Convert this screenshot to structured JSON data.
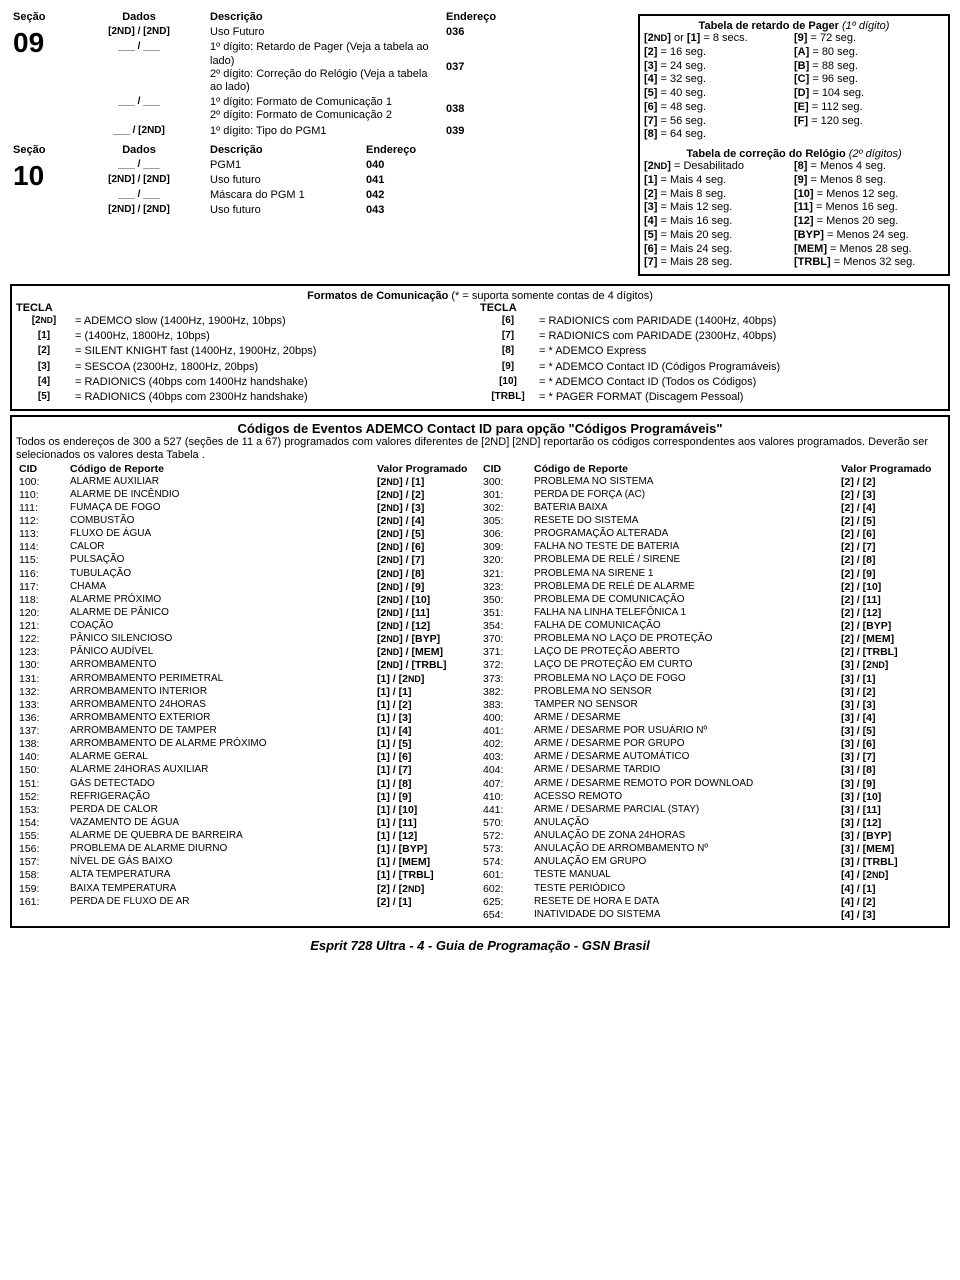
{
  "header": {
    "col1": "Seção",
    "col2": "Dados",
    "col3": "Descrição",
    "col4": "Endereço"
  },
  "s09": {
    "num": "09",
    "r1": {
      "d": "[2ND] / [2ND]",
      "desc": "Uso Futuro",
      "addr": "036"
    },
    "r2": {
      "d": "___ / ___",
      "desc": "1º dígito: Retardo de Pager (Veja a tabela ao lado)\n2º dígito: Correção do Relógio (Veja a tabela ao lado)",
      "addr": "037"
    },
    "r3": {
      "d": "___ / ___",
      "desc": "1º dígito: Formato de Comunicação 1\n2º dígito: Formato de Comunicação 2",
      "addr": "038"
    },
    "r4": {
      "d": "___ / [2ND]",
      "desc": "1º dígito: Tipo do PGM1",
      "addr": "039"
    }
  },
  "s10": {
    "num": "10",
    "hdr": {
      "c1": "Seção",
      "c2": "Dados",
      "c3": "Descrição",
      "c4": "Endereço"
    },
    "r1": {
      "d": "___ / ___",
      "desc": "PGM1",
      "addr": "040"
    },
    "r2": {
      "d": "[2ND] / [2ND]",
      "desc": "Uso futuro",
      "addr": "041"
    },
    "r3": {
      "d": "___ / ___",
      "desc": "Máscara do PGM 1",
      "addr": "042"
    },
    "r4": {
      "d": "[2ND] / [2ND]",
      "desc": "Uso futuro",
      "addr": "043"
    }
  },
  "pager": {
    "title": "Tabela de retardo de Pager",
    "sub": "(1º dígito)",
    "L": [
      "[2ND] or [1] = 8 secs.",
      "[2] = 16 seg.",
      "[3] = 24 seg.",
      "[4] = 32 seg.",
      "[5] = 40 seg.",
      "[6] = 48 seg.",
      "[7] = 56 seg.",
      "[8] = 64 seg."
    ],
    "R": [
      "[9] = 72 seg.",
      "[A] = 80 seg.",
      "[B] = 88 seg.",
      "[C] = 96 seg.",
      "[D] = 104 seg.",
      "[E] = 112  seg.",
      "[F] = 120  seg."
    ]
  },
  "clock": {
    "title": "Tabela  de correção do Relógio",
    "sub": "(2º dígitos)",
    "L": [
      "[2ND] = Desabilitado",
      "[1] = Mais 4 seg.",
      "[2] = Mais 8 seg.",
      "[3] = Mais 12 seg.",
      "[4] = Mais 16 seg.",
      "[5] = Mais 20 seg.",
      "[6] = Mais 24 seg.",
      "[7] = Mais 28 seg."
    ],
    "R": [
      "[8] = Menos 4 seg.",
      "[9] = Menos 8 seg.",
      "[10] = Menos 12 seg.",
      "[11] = Menos 16 seg.",
      "[12] = Menos 20 seg.",
      "[BYP] = Menos 24 seg.",
      "[MEM] = Menos 28 seg.",
      "[TRBL] = Menos 32 seg."
    ]
  },
  "fmt": {
    "title": "Formatos de Comunicação",
    "sub": " (* = suporta somente contas de 4 dígitos)",
    "hdr": "TECLA",
    "L": [
      {
        "k": "[2ND]",
        "t": "= ADEMCO slow (1400Hz, 1900Hz, 10bps)"
      },
      {
        "k": "[1]",
        "t": "= (1400Hz, 1800Hz, 10bps)"
      },
      {
        "k": "[2]",
        "t": "= SILENT KNIGHT fast (1400Hz, 1900Hz, 20bps)"
      },
      {
        "k": "[3]",
        "t": "= SESCOA (2300Hz, 1800Hz, 20bps)"
      },
      {
        "k": "[4]",
        "t": "= RADIONICS (40bps com 1400Hz handshake)"
      },
      {
        "k": "[5]",
        "t": "= RADIONICS (40bps com 2300Hz handshake)"
      }
    ],
    "R": [
      {
        "k": "[6]",
        "t": "= RADIONICS com PARIDADE (1400Hz, 40bps)"
      },
      {
        "k": "[7]",
        "t": "= RADIONICS com PARIDADE (2300Hz, 40bps)"
      },
      {
        "k": "[8]",
        "t": "= * ADEMCO Express"
      },
      {
        "k": "[9]",
        "t": "= * ADEMCO Contact ID (Códigos Programáveis)"
      },
      {
        "k": "[10]",
        "t": "= * ADEMCO Contact ID (Todos os Códigos)"
      },
      {
        "k": "[TRBL]",
        "t": "= * PAGER FORMAT (Discagem Pessoal)"
      }
    ]
  },
  "cid": {
    "title": "Códigos de Eventos ADEMCO Contact ID para opção \"Códigos Programáveis\"",
    "intro": "Todos os endereços de 300 a 527 (seções de 11 a 67) programados com valores diferentes de [2ND] [2ND] reportarão os códigos correspondentes aos valores programados. Deverão ser selecionados os valores desta Tabela .",
    "h1": "CID",
    "h2": "Código de Reporte",
    "h3": "Valor Programado",
    "L": [
      {
        "c": "100:",
        "r": "ALARME AUXILIAR",
        "v": "[2ND] / [1]"
      },
      {
        "c": "110:",
        "r": "ALARME DE INCÊNDIO",
        "v": "[2ND] / [2]"
      },
      {
        "c": "111:",
        "r": "FUMAÇA DE FOGO",
        "v": "[2ND] / [3]"
      },
      {
        "c": "112:",
        "r": "COMBUSTÃO",
        "v": "[2ND] / [4]"
      },
      {
        "c": "113:",
        "r": "FLUXO DE ÁGUA",
        "v": "[2ND] / [5]"
      },
      {
        "c": "114:",
        "r": "CALOR",
        "v": "[2ND] / [6]"
      },
      {
        "c": "115:",
        "r": "PULSAÇÃO",
        "v": "[2ND] / [7]"
      },
      {
        "c": "116:",
        "r": "TUBULAÇÃO",
        "v": "[2ND] / [8]"
      },
      {
        "c": "117:",
        "r": "CHAMA",
        "v": "[2ND] / [9]"
      },
      {
        "c": "118:",
        "r": "ALARME PRÓXIMO",
        "v": "[2ND] / [10]"
      },
      {
        "c": "120:",
        "r": "ALARME DE PÂNICO",
        "v": "[2ND] / [11]"
      },
      {
        "c": "121:",
        "r": "COAÇÃO",
        "v": "[2ND] / [12]"
      },
      {
        "c": "122:",
        "r": "PÂNICO SILENCIOSO",
        "v": "[2ND] / [BYP]"
      },
      {
        "c": "123:",
        "r": "PÂNICO AUDÍVEL",
        "v": "[2ND] / [MEM]"
      },
      {
        "c": "130:",
        "r": "ARROMBAMENTO",
        "v": "[2ND] / [TRBL]"
      },
      {
        "c": "131:",
        "r": "ARROMBAMENTO PERIMETRAL",
        "v": "[1] / [2ND]"
      },
      {
        "c": "132:",
        "r": "ARROMBAMENTO INTERIOR",
        "v": "[1] / [1]"
      },
      {
        "c": "133:",
        "r": "ARROMBAMENTO 24HORAS",
        "v": "[1] / [2]"
      },
      {
        "c": "136:",
        "r": "ARROMBAMENTO EXTERIOR",
        "v": "[1] / [3]"
      },
      {
        "c": "137:",
        "r": "ARROMBAMENTO DE TAMPER",
        "v": "[1] / [4]"
      },
      {
        "c": "138:",
        "r": "ARROMBAMENTO DE ALARME PRÓXIMO",
        "v": "[1] / [5]"
      },
      {
        "c": "140:",
        "r": "ALARME GERAL",
        "v": "[1] / [6]"
      },
      {
        "c": "150:",
        "r": "ALARME 24HORAS AUXILIAR",
        "v": "[1] / [7]"
      },
      {
        "c": "151:",
        "r": "GÁS DETECTADO",
        "v": "[1] / [8]"
      },
      {
        "c": "152:",
        "r": "REFRIGERAÇÃO",
        "v": "[1] / [9]"
      },
      {
        "c": "153:",
        "r": "PERDA DE CALOR",
        "v": "[1] / [10]"
      },
      {
        "c": "154:",
        "r": "VAZAMENTO DE ÁGUA",
        "v": "[1] / [11]"
      },
      {
        "c": "155:",
        "r": "ALARME DE QUEBRA  DE BARREIRA",
        "v": "[1] / [12]"
      },
      {
        "c": "156:",
        "r": "PROBLEMA DE ALARME DIURNO",
        "v": "[1] / [BYP]"
      },
      {
        "c": "157:",
        "r": "NÍVEL DE GÁS BAIXO",
        "v": "[1] / [MEM]"
      },
      {
        "c": "158:",
        "r": "ALTA TEMPERATURA",
        "v": "[1] / [TRBL]"
      },
      {
        "c": "159:",
        "r": "BAIXA TEMPERATURA",
        "v": "[2] / [2ND]"
      },
      {
        "c": "161:",
        "r": "PERDA DE FLUXO DE AR",
        "v": "[2] / [1]"
      }
    ],
    "R": [
      {
        "c": "300:",
        "r": "PROBLEMA NO SISTEMA",
        "v": "[2] / [2]"
      },
      {
        "c": "301:",
        "r": "PERDA DE FORÇA (AC)",
        "v": "[2] / [3]"
      },
      {
        "c": "302:",
        "r": "BATERIA BAIXA",
        "v": "[2] / [4]"
      },
      {
        "c": "305:",
        "r": "RESETE DO SISTEMA",
        "v": "[2] / [5]"
      },
      {
        "c": "306:",
        "r": "PROGRAMAÇÃO ALTERADA",
        "v": "[2] / [6]"
      },
      {
        "c": "309:",
        "r": "FALHA NO TESTE DE BATERIA",
        "v": "[2] / [7]"
      },
      {
        "c": "320:",
        "r": "PROBLEMA DE RELÉ / SIRENE",
        "v": "[2] / [8]"
      },
      {
        "c": "321:",
        "r": "PROBLEMA NA SIRENE 1",
        "v": "[2] / [9]"
      },
      {
        "c": "323:",
        "r": "PROBLEMA DE RELÉ DE ALARME",
        "v": "[2] / [10]"
      },
      {
        "c": "350:",
        "r": "PROBLEMA DE COMUNICAÇÃO",
        "v": "[2] / [11]"
      },
      {
        "c": "351:",
        "r": "FALHA NA LINHA TELEFÔNICA 1",
        "v": "[2] / [12]"
      },
      {
        "c": "354:",
        "r": "FALHA DE COMUNICAÇÃO",
        "v": "[2] / [BYP]"
      },
      {
        "c": "370:",
        "r": "PROBLEMA NO LAÇO DE PROTEÇÃO",
        "v": "[2] / [MEM]"
      },
      {
        "c": "371:",
        "r": "LAÇO DE PROTEÇÃO ABERTO",
        "v": "[2] / [TRBL]"
      },
      {
        "c": "372:",
        "r": "LAÇO DE PROTEÇÃO EM CURTO",
        "v": "[3] / [2ND]"
      },
      {
        "c": "373:",
        "r": "PROBLEMA NO LAÇO DE FOGO",
        "v": "[3] / [1]"
      },
      {
        "c": "382:",
        "r": "PROBLEMA NO SENSOR",
        "v": "[3] / [2]"
      },
      {
        "c": "383:",
        "r": "TAMPER NO SENSOR",
        "v": "[3] / [3]"
      },
      {
        "c": "400:",
        "r": "ARME / DESARME",
        "v": "[3] / [4]"
      },
      {
        "c": "401:",
        "r": "ARME / DESARME POR USUÁRIO Nº",
        "v": "[3] / [5]"
      },
      {
        "c": "402:",
        "r": "ARME / DESARME POR GRUPO",
        "v": "[3] / [6]"
      },
      {
        "c": "403:",
        "r": "ARME / DESARME AUTOMÁTICO",
        "v": "[3] / [7]"
      },
      {
        "c": "404:",
        "r": "ARME / DESARME TARDIO",
        "v": "[3] / [8]"
      },
      {
        "c": "407:",
        "r": "ARME / DESARME REMOTO POR DOWNLOAD",
        "v": "[3] / [9]"
      },
      {
        "c": "410:",
        "r": "ACESSO REMOTO",
        "v": "[3] / [10]"
      },
      {
        "c": "441:",
        "r": "ARME / DESARME PARCIAL (STAY)",
        "v": "[3] / [11]"
      },
      {
        "c": "570:",
        "r": "ANULAÇÃO",
        "v": "[3] / [12]"
      },
      {
        "c": "572:",
        "r": "ANULAÇÃO DE ZONA 24HORAS",
        "v": "[3] / [BYP]"
      },
      {
        "c": "573:",
        "r": "ANULAÇÃO DE ARROMBAMENTO Nº",
        "v": "[3] / [MEM]"
      },
      {
        "c": "574:",
        "r": "ANULAÇÃO EM GRUPO",
        "v": "[3] / [TRBL]"
      },
      {
        "c": "601:",
        "r": "TESTE  MANUAL",
        "v": "[4] / [2ND]"
      },
      {
        "c": "602:",
        "r": "TESTE PERIÓDICO",
        "v": "[4] / [1]"
      },
      {
        "c": "625:",
        "r": "RESETE DE HORA E DATA",
        "v": "[4] / [2]"
      },
      {
        "c": "654:",
        "r": "INATIVIDADE DO SISTEMA",
        "v": "[4] / [3]"
      }
    ]
  },
  "footer": "Esprit 728 Ultra   - 4 -   Guia de Programação - GSN Brasil"
}
